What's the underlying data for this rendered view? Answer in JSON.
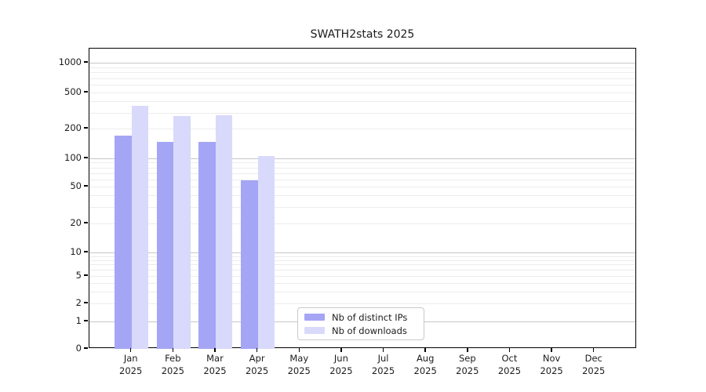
{
  "chart_data": {
    "type": "bar",
    "title": "SWATH2stats 2025",
    "categories": [
      "Jan",
      "Feb",
      "Mar",
      "Apr",
      "May",
      "Jun",
      "Jul",
      "Aug",
      "Sep",
      "Oct",
      "Nov",
      "Dec"
    ],
    "x_tick_year": "2025",
    "series": [
      {
        "name": "Nb of distinct IPs",
        "color": "#a5a5f5",
        "values": [
          171,
          146,
          147,
          58,
          0,
          0,
          0,
          0,
          0,
          0,
          0,
          0
        ]
      },
      {
        "name": "Nb of downloads",
        "color": "#d9d9fb",
        "values": [
          356,
          273,
          279,
          105,
          0,
          0,
          0,
          0,
          0,
          0,
          0,
          0
        ]
      }
    ],
    "y_axis": {
      "scale": "symlog",
      "tick_labels": [
        "0",
        "1",
        "2",
        "5",
        "10",
        "20",
        "50",
        "100",
        "200",
        "500",
        "1000"
      ],
      "tick_values": [
        0,
        1,
        2,
        5,
        10,
        20,
        50,
        100,
        200,
        500,
        1000
      ],
      "major_tick_values": [
        1,
        10,
        100,
        1000
      ],
      "range_top": 1400
    },
    "grid": {
      "enabled": true,
      "major_color": "#c6c6c6",
      "minor_color": "#ececec"
    },
    "legend": {
      "position": "lower center"
    }
  }
}
